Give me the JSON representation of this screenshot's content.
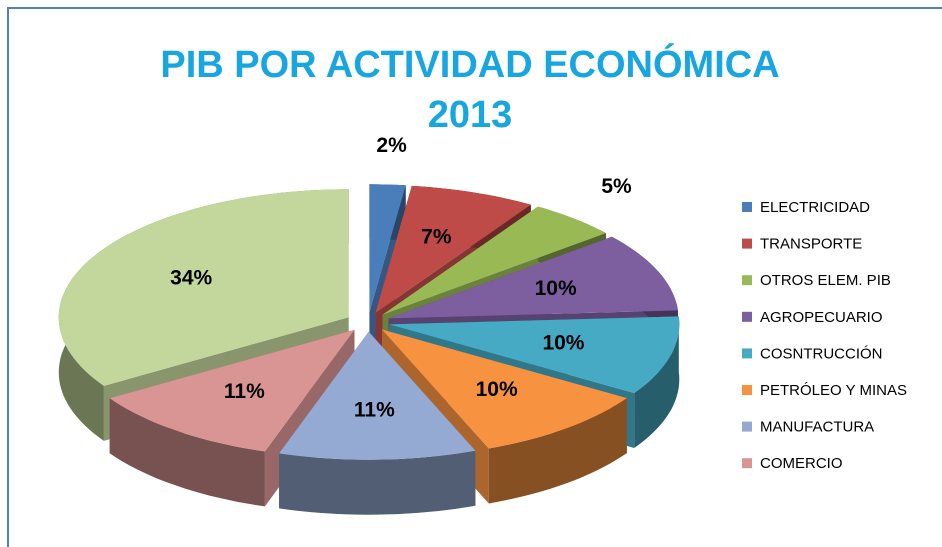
{
  "chart_data": {
    "type": "pie3d",
    "title": "PIB POR ACTIVIDAD ECONÓMICA 2013",
    "categories": [
      "ELECTRICIDAD",
      "TRANSPORTE",
      "OTROS ELEM. PIB",
      "AGROPECUARIO",
      "COSNTRUCCIÓN",
      "PETRÓLEO Y MINAS",
      "MANUFACTURA",
      "COMERCIO",
      null
    ],
    "values": [
      2,
      7,
      5,
      10,
      10,
      10,
      11,
      11,
      34
    ],
    "value_labels": [
      "2%",
      "7%",
      "5%",
      "10%",
      "10%",
      "10%",
      "11%",
      "11%",
      "34%"
    ],
    "colors": [
      "#4a7ebb",
      "#be4b48",
      "#98b954",
      "#7d5fa0",
      "#46aac5",
      "#f69240",
      "#95aad3",
      "#d99594",
      "#c3d69b"
    ],
    "legend": "right"
  }
}
